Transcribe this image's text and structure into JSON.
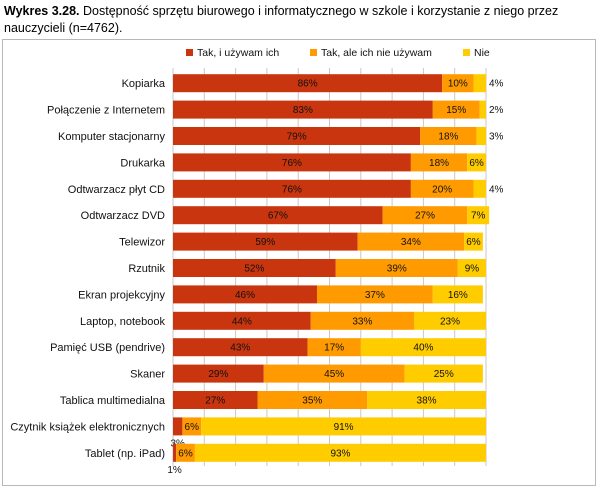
{
  "caption": {
    "lead": "Wykres 3.28.",
    "text": "Dostępność sprzętu biurowego i informatycznego w szkole i korzystanie z niego przez nauczycieli (n=4762)."
  },
  "colors": {
    "series": [
      "#c8350e",
      "#ff9b00",
      "#ffcc00"
    ],
    "grid": "#c8c8c8"
  },
  "chart_data": {
    "type": "bar",
    "orientation": "horizontal",
    "stacked": true,
    "xlim": [
      0,
      100
    ],
    "legend_position": "top",
    "grid": true,
    "categories": [
      "Kopiarka",
      "Połączenie z Internetem",
      "Komputer  stacjonarny",
      "Drukarka",
      "Odtwarzacz płyt CD",
      "Odtwarzacz DVD",
      "Telewizor",
      "Rzutnik",
      "Ekran projekcyjny",
      "Laptop, notebook",
      "Pamięć USB (pendrive)",
      "Skaner",
      "Tablica multimedialna",
      "Czytnik książek elektronicznych",
      "Tablet (np. iPad)"
    ],
    "series": [
      {
        "name": "Tak, i używam ich",
        "values": [
          86,
          83,
          79,
          76,
          76,
          67,
          59,
          52,
          46,
          44,
          43,
          29,
          27,
          3,
          1
        ]
      },
      {
        "name": "Tak, ale ich nie używam",
        "values": [
          10,
          15,
          18,
          18,
          20,
          27,
          34,
          39,
          37,
          33,
          17,
          45,
          35,
          6,
          6
        ]
      },
      {
        "name": "Nie",
        "values": [
          4,
          2,
          3,
          6,
          4,
          7,
          6,
          9,
          16,
          23,
          40,
          25,
          38,
          91,
          93
        ]
      }
    ]
  }
}
